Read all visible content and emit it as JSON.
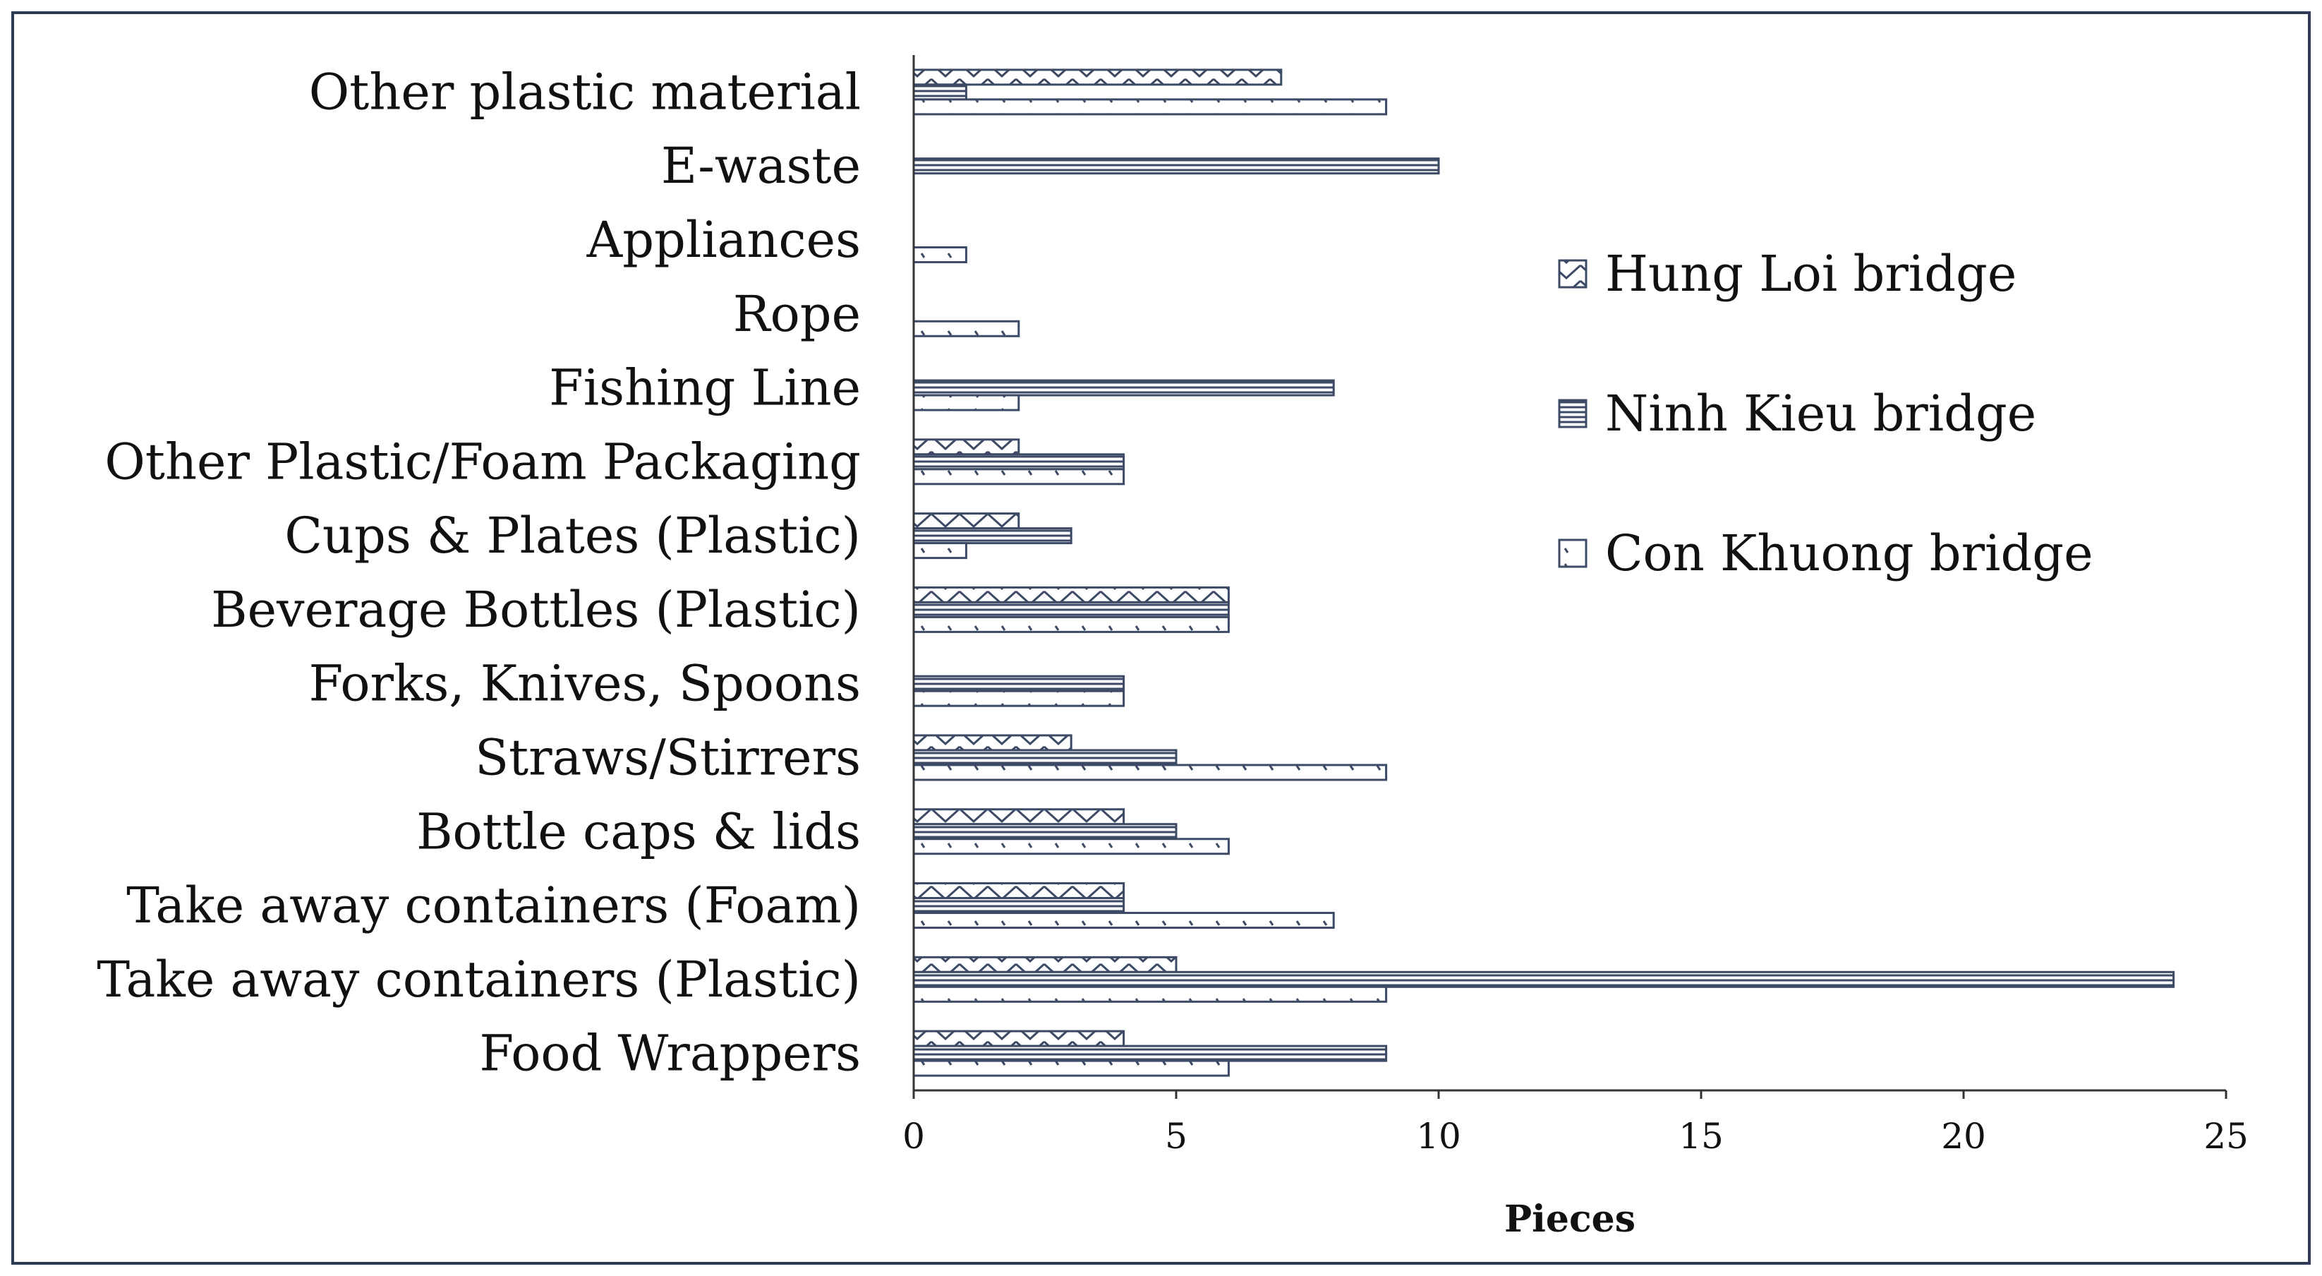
{
  "chart_data": {
    "type": "bar",
    "orientation": "horizontal",
    "title": "",
    "xlabel": "Pieces",
    "ylabel": "",
    "xlim": [
      0,
      25
    ],
    "xticks": [
      0,
      5,
      10,
      15,
      20,
      25
    ],
    "grid": false,
    "legend_position": "right",
    "categories": [
      "Other plastic material",
      "E-waste",
      "Appliances",
      "Rope",
      "Fishing Line",
      "Other Plastic/Foam Packaging",
      "Cups & Plates (Plastic)",
      "Beverage Bottles (Plastic)",
      "Forks, Knives, Spoons",
      "Straws/Stirrers",
      "Bottle caps & lids",
      "Take away containers (Foam)",
      "Take away containers (Plastic)",
      "Food Wrappers"
    ],
    "series": [
      {
        "name": "Hung Loi bridge",
        "pattern": "diamond-hatch",
        "values": [
          7,
          0,
          0,
          0,
          0,
          2,
          2,
          6,
          0,
          3,
          4,
          4,
          5,
          4
        ]
      },
      {
        "name": "Ninh Kieu bridge",
        "pattern": "horizontal-lines",
        "values": [
          1,
          10,
          0,
          0,
          8,
          4,
          3,
          6,
          4,
          5,
          5,
          4,
          24,
          9
        ]
      },
      {
        "name": "Con Khuong bridge",
        "pattern": "dotted",
        "values": [
          9,
          0,
          1,
          2,
          2,
          4,
          1,
          6,
          4,
          9,
          6,
          8,
          9,
          6
        ]
      }
    ],
    "colors": {
      "stroke": "#3d4a66",
      "frame": "#2f3b55",
      "axis": "#333333"
    }
  }
}
